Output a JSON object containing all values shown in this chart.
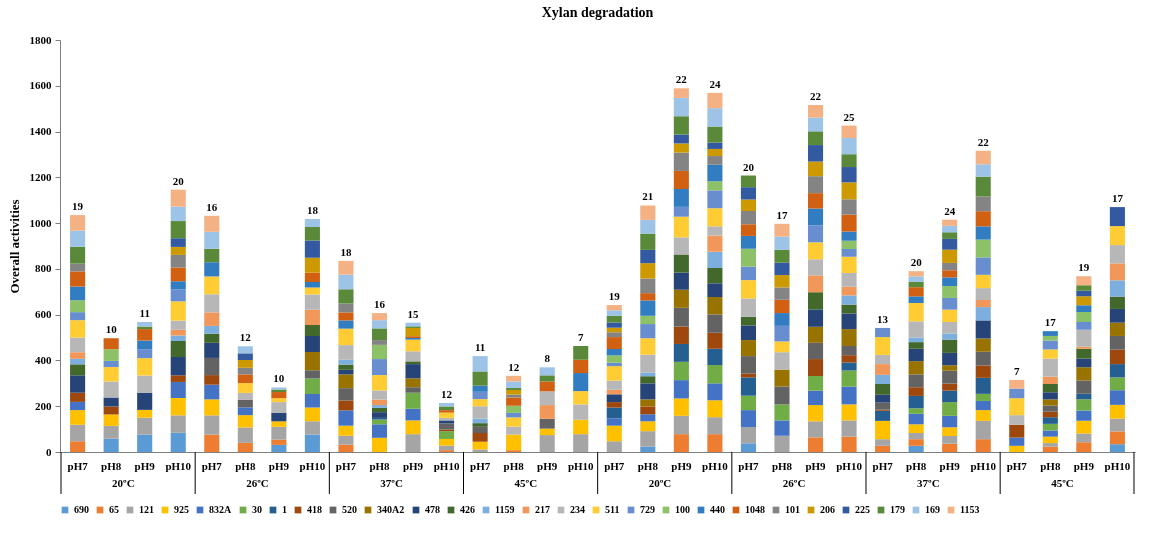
{
  "chart_data": {
    "type": "bar",
    "title": "Xylan degradation",
    "ylabel": "Overall activities",
    "stacked": true,
    "legend": "bottom",
    "categories": [
      "pH7",
      "pH8",
      "pH9",
      "pH10",
      "pH7",
      "pH8",
      "pH9",
      "pH10",
      "pH7",
      "pH8",
      "pH9",
      "pH10",
      "pH7",
      "pH8",
      "pH9",
      "pH10",
      "pH7",
      "pH8",
      "pH9",
      "pH10",
      "pH7",
      "pH8",
      "pH9",
      "pH10",
      "pH7",
      "pH8",
      "pH9",
      "pH10",
      "pH7",
      "pH8",
      "pH9",
      "pH10"
    ],
    "ylim": [
      0,
      1800
    ],
    "yticks": [
      0,
      200,
      400,
      600,
      800,
      1000,
      1200,
      1400,
      1600,
      1800
    ],
    "annotations": [
      "19",
      "10",
      "11",
      "20",
      "16",
      "12",
      "10",
      "18",
      "18",
      "16",
      "15",
      "12",
      "11",
      "12",
      "8",
      "7",
      "19",
      "21",
      "22",
      "24",
      "20",
      "17",
      "22",
      "25",
      "13",
      "20",
      "24",
      "22",
      "7",
      "17",
      "19",
      "17",
      "20ºC",
      "26ºC",
      "37ºC",
      "45ºC",
      "20ºC",
      "26ºC",
      "37ºC",
      "45ºC"
    ],
    "series": [
      {
        "name": "690",
        "color": "#5b9bd5",
        "values": [
          null,
          58,
          76,
          84,
          null,
          null,
          31,
          76,
          null,
          null,
          null,
          null,
          null,
          null,
          null,
          null,
          null,
          24,
          null,
          null,
          38,
          null,
          null,
          null,
          null,
          27,
          null,
          null,
          null,
          null,
          null,
          34
        ]
      },
      {
        "name": "65",
        "color": "#ed7d31",
        "values": [
          47,
          null,
          null,
          null,
          76,
          40,
          23,
          null,
          32,
          null,
          null,
          8,
          null,
          8,
          null,
          null,
          null,
          null,
          78,
          78,
          null,
          null,
          64,
          67,
          27,
          29,
          36,
          56,
          null,
          23,
          43,
          56
        ]
      },
      {
        "name": "121",
        "color": "#a5a5a5",
        "values": [
          72,
          56,
          74,
          76,
          84,
          67,
          56,
          58,
          39,
          null,
          78,
          20,
          11,
          null,
          74,
          78,
          47,
          67,
          80,
          74,
          71,
          71,
          70,
          71,
          29,
          27,
          34,
          80,
          null,
          16,
          38,
          56
        ]
      },
      {
        "name": "925",
        "color": "#ffc000",
        "values": [
          64,
          50,
          34,
          76,
          70,
          54,
          24,
          60,
          44,
          62,
          60,
          29,
          34,
          68,
          28,
          63,
          68,
          43,
          76,
          74,
          null,
          null,
          71,
          70,
          80,
          38,
          38,
          47,
          27,
          28,
          56,
          60
        ]
      },
      {
        "name": "832A",
        "color": "#4472c4",
        "values": [
          36,
          null,
          null,
          70,
          64,
          34,
          null,
          59,
          67,
          59,
          51,
          null,
          null,
          null,
          null,
          null,
          32,
          31,
          80,
          74,
          74,
          67,
          63,
          78,
          null,
          46,
          50,
          40,
          36,
          27,
          44,
          64
        ]
      },
      {
        "name": "30",
        "color": "#70ad47",
        "values": [
          null,
          null,
          null,
          null,
          null,
          null,
          null,
          68,
          null,
          21,
          70,
          34,
          null,
          null,
          null,
          null,
          null,
          null,
          80,
          80,
          63,
          70,
          64,
          70,
          null,
          24,
          60,
          31,
          null,
          29,
          50,
          56
        ]
      },
      {
        "name": "1",
        "color": "#255e91",
        "values": [
          null,
          null,
          null,
          null,
          null,
          null,
          null,
          null,
          null,
          7,
          null,
          null,
          null,
          null,
          null,
          null,
          47,
          null,
          78,
          71,
          80,
          null,
          null,
          35,
          44,
          54,
          50,
          70,
          null,
          29,
          23,
          58
        ]
      },
      {
        "name": "418",
        "color": "#9e480e",
        "values": [
          40,
          35,
          null,
          29,
          42,
          null,
          null,
          null,
          43,
          null,
          null,
          7,
          38,
          null,
          null,
          null,
          24,
          34,
          76,
          70,
          17,
          null,
          74,
          32,
          5,
          38,
          31,
          54,
          56,
          24,
          null,
          63
        ]
      },
      {
        "name": "520",
        "color": "#636363",
        "values": [
          null,
          null,
          null,
          null,
          75,
          34,
          null,
          36,
          54,
          null,
          24,
          27,
          27,
          null,
          43,
          null,
          null,
          null,
          82,
          80,
          76,
          78,
          71,
          40,
          31,
          56,
          56,
          60,
          null,
          27,
          58,
          60
        ]
      },
      {
        "name": "340A2",
        "color": "#997300",
        "values": [
          null,
          null,
          null,
          null,
          null,
          null,
          null,
          80,
          60,
          null,
          39,
          null,
          null,
          null,
          null,
          null,
          null,
          31,
          79,
          76,
          70,
          74,
          70,
          74,
          null,
          58,
          24,
          58,
          null,
          27,
          58,
          58
        ]
      },
      {
        "name": "478",
        "color": "#264478",
        "values": [
          76,
          39,
          74,
          80,
          66,
          null,
          38,
          70,
          20,
          25,
          62,
          13,
          null,
          null,
          null,
          null,
          34,
          70,
          75,
          60,
          64,
          null,
          76,
          68,
          34,
          54,
          54,
          79,
          null,
          31,
          39,
          60
        ]
      },
      {
        "name": "426",
        "color": "#43682b",
        "values": [
          48,
          null,
          null,
          70,
          40,
          null,
          null,
          48,
          23,
          19,
          12,
          null,
          16,
          null,
          null,
          null,
          null,
          31,
          79,
          67,
          38,
          null,
          75,
          39,
          47,
          29,
          58,
          null,
          null,
          36,
          42,
          54
        ]
      },
      {
        "name": "1159",
        "color": "#7cafdd",
        "values": [
          24,
          null,
          null,
          24,
          34,
          null,
          null,
          null,
          21,
          12,
          null,
          null,
          20,
          null,
          null,
          null,
          null,
          16,
          null,
          71,
          null,
          null,
          null,
          40,
          40,
          20,
          27,
          58,
          null,
          null,
          null,
          71
        ]
      },
      {
        "name": "217",
        "color": "#f1975a",
        "values": [
          29,
          null,
          null,
          25,
          59,
          null,
          null,
          67,
          null,
          24,
          null,
          null,
          null,
          null,
          60,
          null,
          20,
          null,
          null,
          71,
          null,
          null,
          74,
          38,
          47,
          null,
          null,
          31,
          null,
          32,
          9,
          74
        ]
      },
      {
        "name": "234",
        "color": "#b7b7b7",
        "values": [
          64,
          70,
          76,
          40,
          79,
          29,
          46,
          66,
          64,
          40,
          44,
          11,
          54,
          35,
          60,
          67,
          40,
          78,
          75,
          40,
          80,
          76,
          70,
          60,
          40,
          71,
          50,
          52,
          42,
          79,
          74,
          80
        ]
      },
      {
        "name": "511",
        "color": "#ffcd33",
        "values": [
          76,
          63,
          76,
          84,
          78,
          43,
          17,
          31,
          72,
          67,
          51,
          23,
          31,
          40,
          null,
          58,
          63,
          72,
          90,
          79,
          80,
          47,
          74,
          71,
          78,
          80,
          54,
          58,
          74,
          40,
          null,
          83
        ]
      },
      {
        "name": "729",
        "color": "#698ed0",
        "values": [
          35,
          27,
          39,
          52,
          null,
          null,
          null,
          null,
          null,
          70,
          null,
          null,
          32,
          20,
          null,
          null,
          15,
          62,
          43,
          78,
          59,
          68,
          74,
          34,
          40,
          null,
          51,
          76,
          42,
          39,
          34,
          null
        ]
      },
      {
        "name": "100",
        "color": "#8cc168",
        "values": [
          52,
          51,
          null,
          null,
          null,
          null,
          null,
          null,
          null,
          62,
          null,
          null,
          null,
          31,
          null,
          null,
          32,
          36,
          null,
          40,
          78,
          null,
          null,
          36,
          null,
          null,
          52,
          78,
          null,
          20,
          44,
          null
        ]
      },
      {
        "name": "440",
        "color": "#327dc2",
        "values": [
          60,
          null,
          38,
          36,
          62,
          null,
          null,
          24,
          36,
          null,
          7,
          null,
          27,
          null,
          null,
          79,
          28,
          67,
          78,
          72,
          56,
          56,
          74,
          40,
          null,
          29,
          38,
          58,
          null,
          21,
          29,
          null
        ]
      },
      {
        "name": "1048",
        "color": "#d26012",
        "values": [
          66,
          48,
          50,
          60,
          null,
          38,
          27,
          40,
          35,
          null,
          8,
          11,
          null,
          36,
          43,
          58,
          52,
          32,
          79,
          null,
          51,
          58,
          67,
          74,
          null,
          40,
          31,
          66,
          null,
          null,
          null,
          null
        ]
      },
      {
        "name": "101",
        "color": "#848484",
        "values": [
          34,
          null,
          null,
          55,
          null,
          29,
          null,
          null,
          39,
          21,
          null,
          null,
          null,
          13,
          null,
          null,
          21,
          64,
          80,
          38,
          58,
          54,
          74,
          67,
          null,
          null,
          32,
          64,
          null,
          null,
          null,
          null
        ]
      },
      {
        "name": "206",
        "color": "#cc9a00",
        "values": [
          null,
          null,
          null,
          35,
          null,
          34,
          null,
          66,
          null,
          null,
          36,
          null,
          null,
          20,
          null,
          null,
          20,
          67,
          40,
          31,
          50,
          54,
          64,
          74,
          null,
          null,
          58,
          null,
          null,
          null,
          40,
          null
        ]
      },
      {
        "name": "225",
        "color": "#335aa1",
        "values": [
          null,
          null,
          null,
          38,
          null,
          29,
          null,
          75,
          null,
          null,
          null,
          null,
          null,
          null,
          null,
          null,
          23,
          58,
          39,
          28,
          54,
          54,
          72,
          67,
          null,
          null,
          47,
          null,
          null,
          null,
          23,
          83
        ]
      },
      {
        "name": "179",
        "color": "#5a8a39",
        "values": [
          74,
          null,
          11,
          75,
          59,
          null,
          11,
          59,
          62,
          51,
          7,
          16,
          62,
          9,
          27,
          60,
          29,
          71,
          80,
          70,
          51,
          56,
          60,
          56,
          null,
          23,
          29,
          87,
          null,
          null,
          24,
          null
        ]
      },
      {
        "name": "169",
        "color": "#9dc3e6",
        "values": [
          70,
          null,
          20,
          63,
          74,
          31,
          9,
          35,
          64,
          36,
          16,
          15,
          67,
          28,
          35,
          null,
          24,
          60,
          80,
          80,
          null,
          58,
          60,
          71,
          null,
          24,
          28,
          54,
          null,
          null,
          null,
          null
        ]
      },
      {
        "name": "1153",
        "color": "#f4b183",
        "values": [
          68,
          null,
          null,
          74,
          70,
          null,
          null,
          null,
          60,
          31,
          null,
          null,
          null,
          25,
          null,
          null,
          23,
          63,
          42,
          67,
          null,
          56,
          55,
          54,
          null,
          23,
          27,
          59,
          38,
          null,
          40,
          null
        ]
      }
    ]
  }
}
